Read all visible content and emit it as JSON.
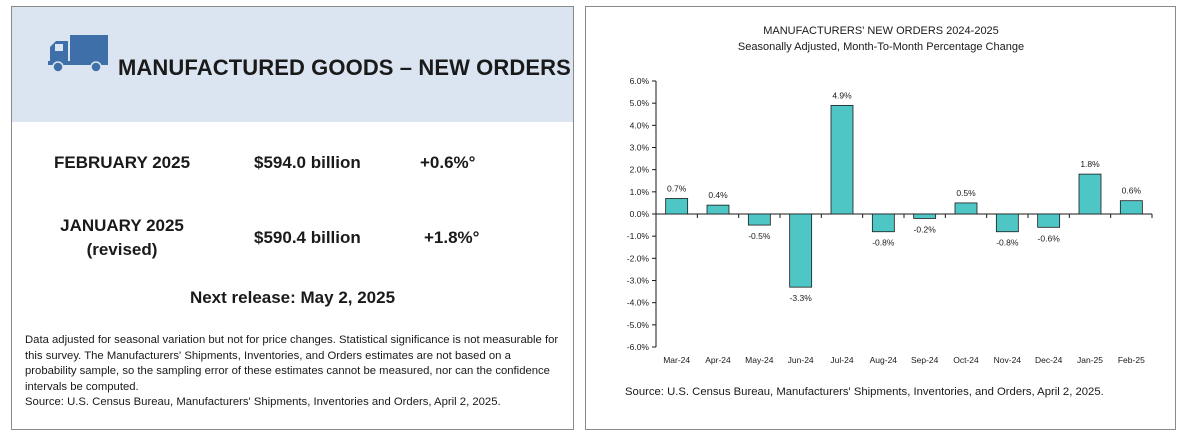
{
  "summary": {
    "title": "MANUFACTURED GOODS – NEW ORDERS",
    "rows": [
      {
        "period": "FEBRUARY 2025",
        "period_note": "",
        "value": "$594.0 billion",
        "change": "+0.6%°"
      },
      {
        "period": "JANUARY 2025",
        "period_note": "(revised)",
        "value": "$590.4 billion",
        "change": "+1.8%°"
      }
    ],
    "next_release": "Next release: May 2, 2025",
    "notes": [
      "Data adjusted for seasonal variation but not for price changes. Statistical significance is not measurable for this survey.  The Manufacturers' Shipments, Inventories, and Orders estimates are not based on a probability sample, so the sampling error of these estimates cannot be measured, nor can the confidence intervals be computed.",
      "Source: U.S. Census Bureau, Manufacturers' Shipments, Inventories and Orders, April 2, 2025."
    ],
    "icon": "truck-icon",
    "colors": {
      "header_band": "#dbe5f1",
      "icon": "#3f6fa8"
    }
  },
  "chart_data": {
    "type": "bar",
    "title": "MANUFACTURERS' NEW ORDERS 2024-2025",
    "subtitle": "Seasonally Adjusted,  Month-To-Month Percentage Change",
    "categories": [
      "Mar-24",
      "Apr-24",
      "May-24",
      "Jun-24",
      "Jul-24",
      "Aug-24",
      "Sep-24",
      "Oct-24",
      "Nov-24",
      "Dec-24",
      "Jan-25",
      "Feb-25"
    ],
    "values": [
      0.7,
      0.4,
      -0.5,
      -3.3,
      4.9,
      -0.8,
      -0.2,
      0.5,
      -0.8,
      -0.6,
      1.8,
      0.6
    ],
    "value_labels": [
      "0.7%",
      "0.4%",
      "-0.5%",
      "-3.3%",
      "4.9%",
      "-0.8%",
      "-0.2%",
      "0.5%",
      "-0.8%",
      "-0.6%",
      "1.8%",
      "0.6%"
    ],
    "yticks": [
      6,
      5,
      4,
      3,
      2,
      1,
      0,
      -1,
      -2,
      -3,
      -4,
      -5,
      -6
    ],
    "ytick_labels": [
      "6.0%",
      "5.0%",
      "4.0%",
      "3.0%",
      "2.0%",
      "1.0%",
      "0.0%",
      "-1.0%",
      "-2.0%",
      "-3.0%",
      "-4.0%",
      "-5.0%",
      "-6.0%"
    ],
    "ylim": [
      -6,
      6
    ],
    "grid": false,
    "bar_color": "#4fc6c6",
    "bar_edge_color": "#1a1a1a",
    "source": "Source: U.S. Census Bureau, Manufacturers' Shipments, Inventories, and Orders, April 2, 2025."
  }
}
